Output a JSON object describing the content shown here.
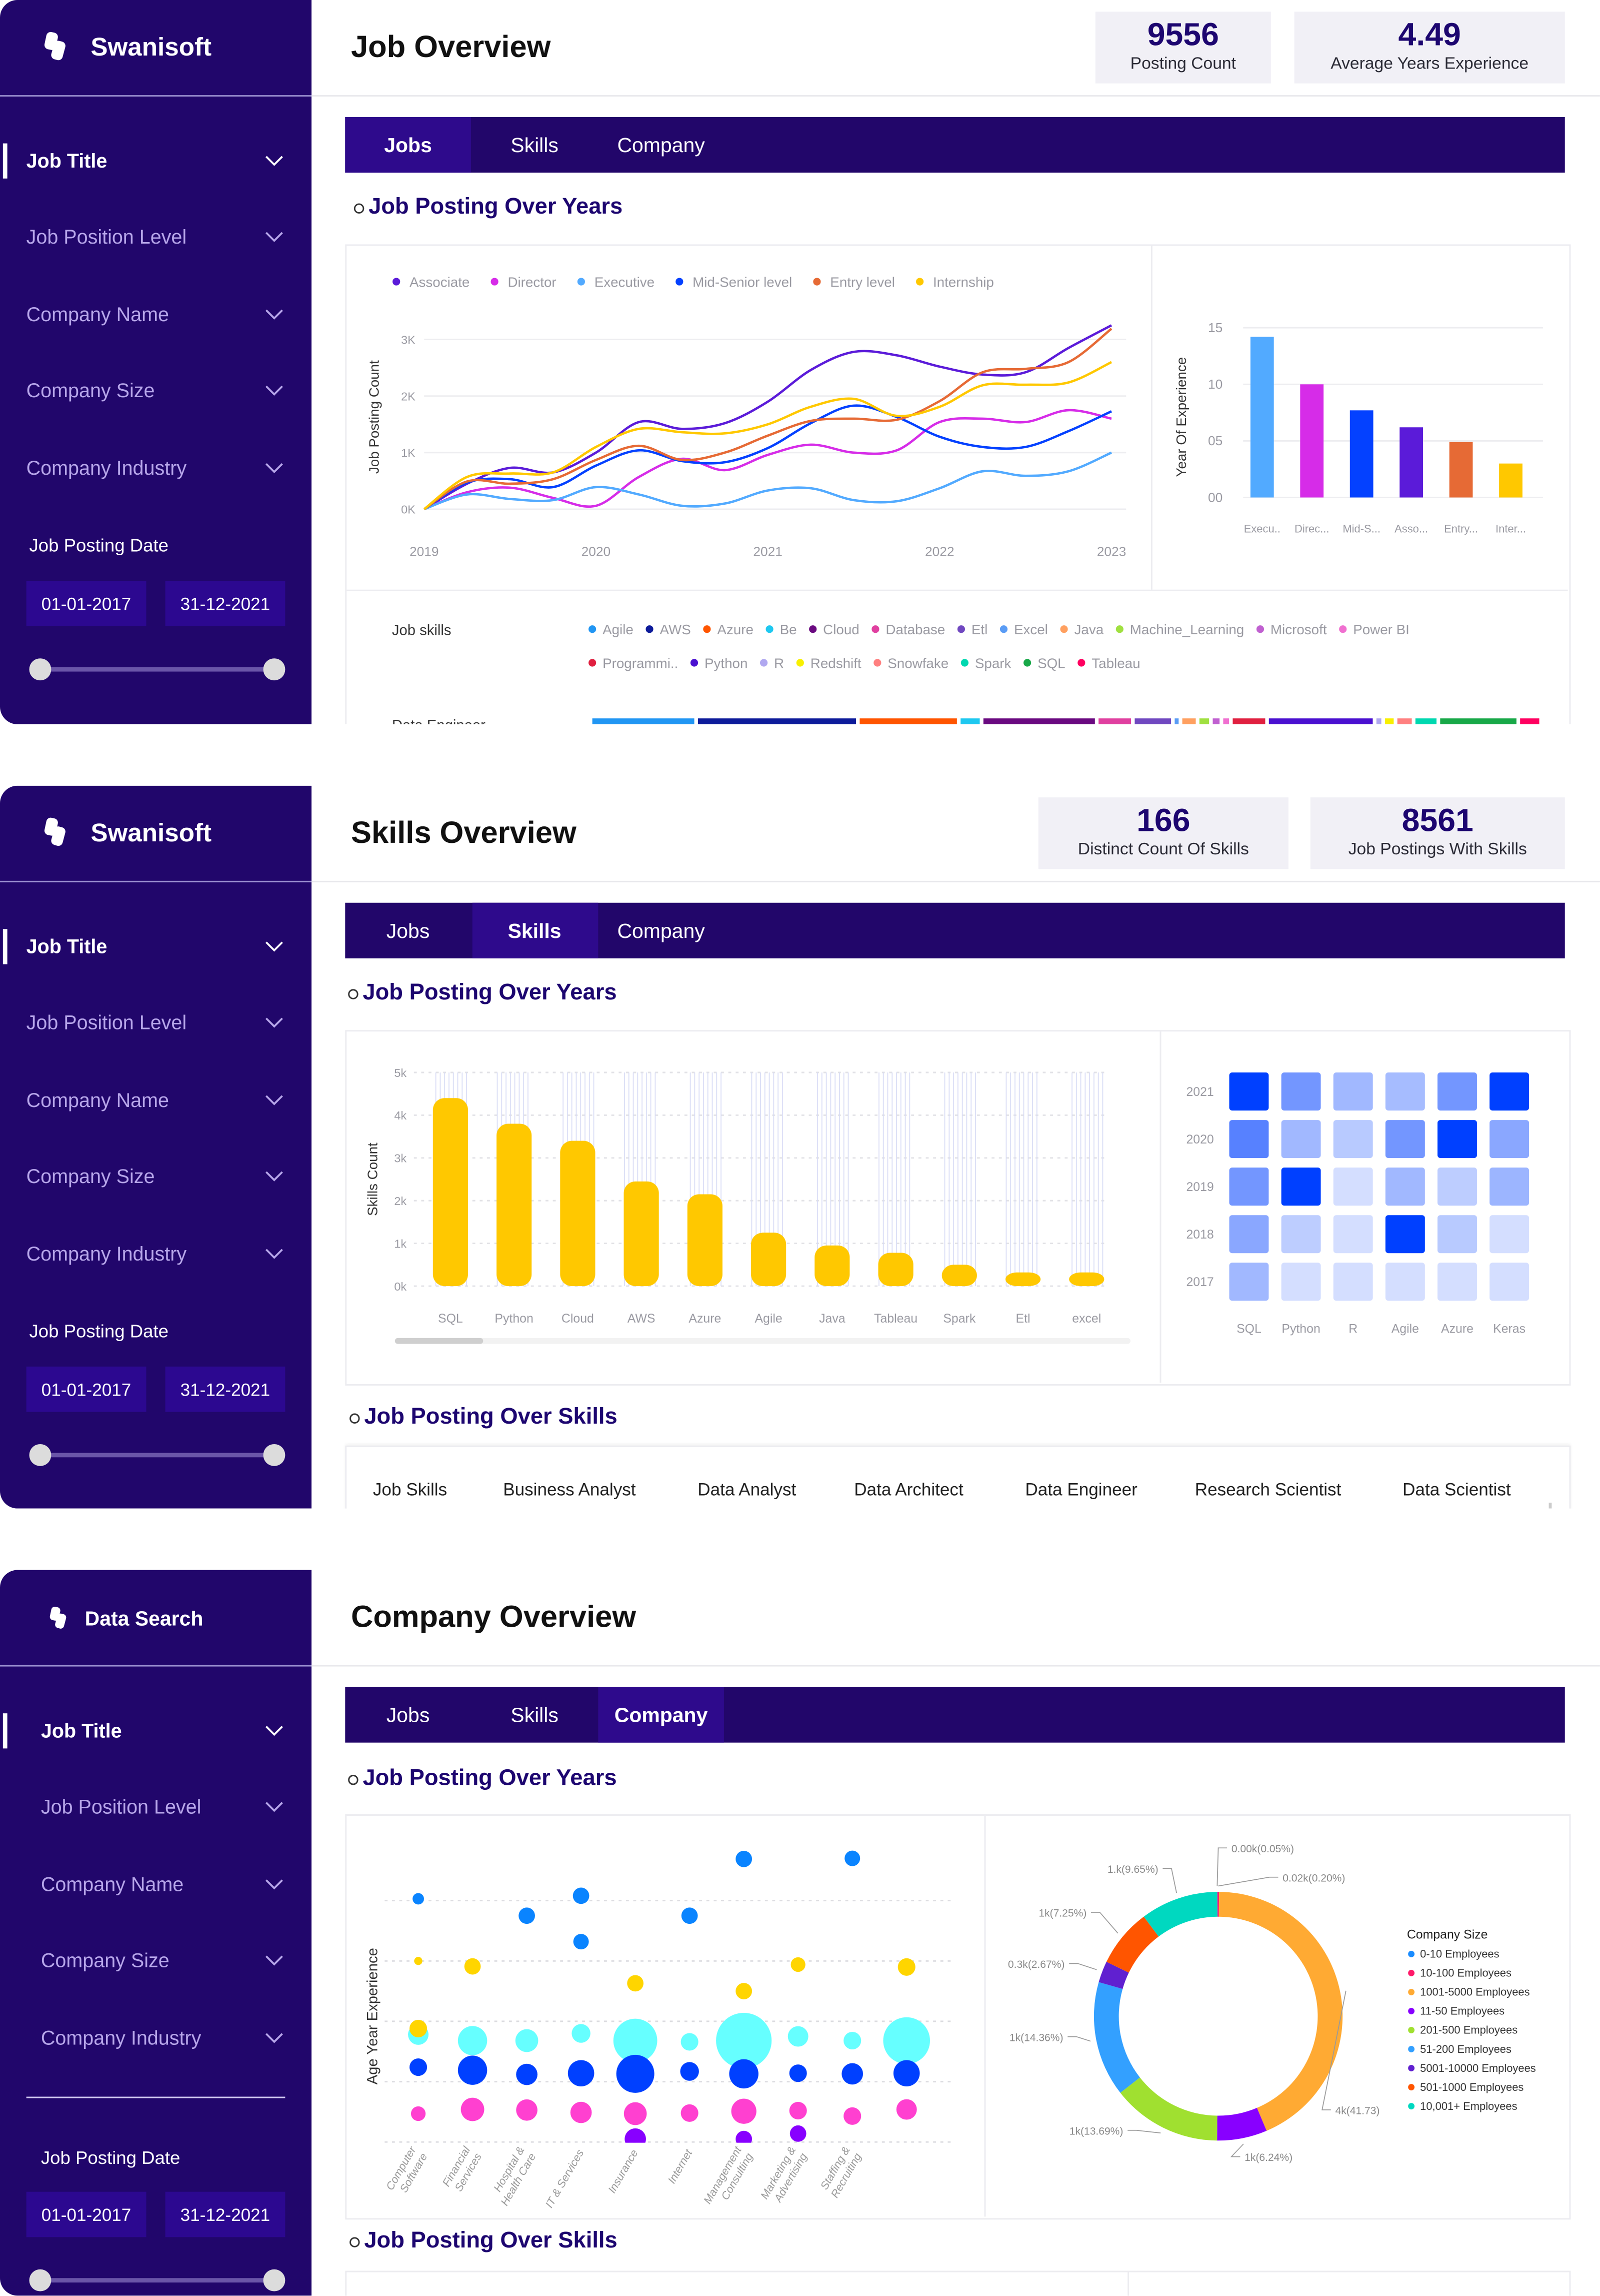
{
  "colors": {
    "sidebar_bg": "#21066b",
    "tab_bar_bg": "#22066a",
    "tab_active_bg": "#2e0a8c",
    "heading": "#1d0670",
    "kpi_bg": "#f1f0f6",
    "accent_yellow": "#ffc800"
  },
  "panels": [
    {
      "sidebar": {
        "brand": "Swanisoft",
        "filters": [
          "Job Title",
          "Job Position Level",
          "Company Name",
          "Company Size",
          "Company Industry"
        ],
        "active_filter": "Job Title",
        "date_label": "Job Posting Date",
        "date_from": "01-01-2017",
        "date_to": "31-12-2021",
        "slider": {
          "from_fraction": 0,
          "to_fraction": 1
        }
      },
      "title": "Job Overview",
      "kpis": [
        {
          "value": "9556",
          "label": "Posting Count"
        },
        {
          "value": "4.49",
          "label": "Average Years Experience"
        }
      ],
      "tabs": [
        "Jobs",
        "Skills",
        "Company"
      ],
      "active_tab": "Jobs",
      "sections": [
        "Job Posting Over Years"
      ]
    },
    {
      "sidebar": {
        "brand": "Swanisoft",
        "filters": [
          "Job Title",
          "Job Position Level",
          "Company Name",
          "Company Size",
          "Company Industry"
        ],
        "active_filter": "Job Title",
        "date_label": "Job Posting Date",
        "date_from": "01-01-2017",
        "date_to": "31-12-2021",
        "slider": {
          "from_fraction": 0,
          "to_fraction": 1
        }
      },
      "title": "Skills Overview",
      "kpis": [
        {
          "value": "166",
          "label": "Distinct Count Of Skills"
        },
        {
          "value": "8561",
          "label": "Job Postings With Skills"
        }
      ],
      "tabs": [
        "Jobs",
        "Skills",
        "Company"
      ],
      "active_tab": "Skills",
      "sections": [
        "Job Posting Over Years",
        "Job Posting Over Skills"
      ],
      "skills_table_headers": [
        "Job Skills",
        "Business Analyst",
        "Data Analyst",
        "Data Architect",
        "Data Engineer",
        "Research Scientist",
        "Data Scientist"
      ]
    },
    {
      "sidebar": {
        "brand": "Data Search",
        "filters": [
          "Job Title",
          "Job Position Level",
          "Company Name",
          "Company Size",
          "Company Industry"
        ],
        "active_filter": "Job Title",
        "date_label": "Job Posting Date",
        "date_from": "01-01-2017",
        "date_to": "31-12-2021",
        "slider": {
          "from_fraction": 0,
          "to_fraction": 1
        }
      },
      "title": "Company Overview",
      "tabs": [
        "Jobs",
        "Skills",
        "Company"
      ],
      "active_tab": "Company",
      "sections": [
        "Job Posting Over Years",
        "Job Posting Over Skills"
      ]
    }
  ],
  "chart_data": [
    {
      "type": "line",
      "ylabel": "Job Posting Count",
      "x": [
        2019,
        2019.25,
        2019.5,
        2019.75,
        2020,
        2020.25,
        2020.5,
        2020.75,
        2021,
        2021.25,
        2021.5,
        2021.75,
        2022,
        2022.25,
        2022.5,
        2022.75,
        2023
      ],
      "x_ticks": [
        "2019",
        "2020",
        "2021",
        "2022",
        "2023"
      ],
      "y_ticks": [
        "0K",
        "1K",
        "2K",
        "3K"
      ],
      "ylim": [
        0,
        3000
      ],
      "grid": true,
      "legend": "top-left",
      "series": [
        {
          "name": "Associate",
          "color": "#5b1bd9",
          "values": [
            0,
            450,
            730,
            650,
            1000,
            1540,
            1420,
            1520,
            1900,
            2460,
            2780,
            2720,
            2520,
            2380,
            2420,
            2850,
            3250
          ]
        },
        {
          "name": "Director",
          "color": "#d62ce8",
          "values": [
            0,
            300,
            380,
            200,
            60,
            570,
            890,
            690,
            960,
            1140,
            1000,
            1040,
            1540,
            1600,
            1540,
            1750,
            1600
          ]
        },
        {
          "name": "Executive",
          "color": "#52aaff",
          "values": [
            0,
            260,
            180,
            160,
            390,
            260,
            60,
            100,
            330,
            370,
            160,
            140,
            370,
            670,
            590,
            670,
            1000
          ]
        },
        {
          "name": "Mid-Senior level",
          "color": "#0441ff",
          "values": [
            0,
            470,
            530,
            390,
            770,
            1040,
            850,
            830,
            1080,
            1520,
            1830,
            1630,
            1280,
            1100,
            1100,
            1380,
            1730
          ]
        },
        {
          "name": "Entry level",
          "color": "#e66a35",
          "values": [
            0,
            490,
            450,
            530,
            870,
            1120,
            870,
            1000,
            1300,
            1560,
            1600,
            1580,
            1910,
            2420,
            2480,
            2600,
            3190
          ]
        },
        {
          "name": "Internship",
          "color": "#ffc800",
          "values": [
            0,
            570,
            630,
            650,
            1100,
            1420,
            1360,
            1340,
            1500,
            1810,
            1950,
            1650,
            1810,
            2190,
            2200,
            2240,
            2600
          ]
        }
      ]
    },
    {
      "type": "bar",
      "ylabel": "Year Of Experience",
      "categories": [
        "Execu..",
        "Direc...",
        "Mid-S...",
        "Asso...",
        "Entry...",
        "Inter..."
      ],
      "values": [
        14.2,
        10.0,
        7.7,
        6.2,
        4.9,
        3.0
      ],
      "colors": [
        "#52aaff",
        "#d62ce8",
        "#0441ff",
        "#5b1bd9",
        "#e66a35",
        "#ffc800"
      ],
      "y_ticks": [
        "00",
        "05",
        "10",
        "15"
      ],
      "ylim": [
        0,
        15
      ],
      "grid": true
    },
    {
      "type": "bar",
      "stacked": true,
      "legend_title": "Job skills",
      "row_label": "Data Engineer",
      "unit": "percent share",
      "series": [
        {
          "name": "Agile",
          "color": "#2196f3",
          "value": 11.1
        },
        {
          "name": "AWS",
          "color": "#0d1b9a",
          "value": 17.0
        },
        {
          "name": "Azure",
          "color": "#ff5500",
          "value": 10.6
        },
        {
          "name": "Be",
          "color": "#1ec8f0",
          "value": 2.4
        },
        {
          "name": "Cloud",
          "color": "#6a0a80",
          "value": 12.1
        },
        {
          "name": "Database",
          "color": "#e040a0",
          "value": 3.8
        },
        {
          "name": "Etl",
          "color": "#7048c0",
          "value": 4.2
        },
        {
          "name": "Excel",
          "color": "#5a9cf5",
          "value": 0.8
        },
        {
          "name": "Java",
          "color": "#ffa060",
          "value": 1.8
        },
        {
          "name": "Machine_Learning",
          "color": "#a0e040",
          "value": 1.4
        },
        {
          "name": "Microsoft",
          "color": "#c060d0",
          "value": 1.1
        },
        {
          "name": "Power BI",
          "color": "#f070d0",
          "value": 1.0
        },
        {
          "name": "Programmi..",
          "color": "#e02040",
          "value": 3.8
        },
        {
          "name": "Python",
          "color": "#4a10d0",
          "value": 11.3
        },
        {
          "name": "R",
          "color": "#b0a8f0",
          "value": 0.9
        },
        {
          "name": "Redshift",
          "color": "#f8f000",
          "value": 1.3
        },
        {
          "name": "Snowfake",
          "color": "#ff8080",
          "value": 1.9
        },
        {
          "name": "Spark",
          "color": "#00d8b0",
          "value": 2.6
        },
        {
          "name": "SQL",
          "color": "#18a848",
          "value": 8.4
        },
        {
          "name": "Tableau",
          "color": "#ff0060",
          "value": 2.4
        }
      ]
    },
    {
      "type": "bar",
      "ylabel": "Skills Count",
      "categories": [
        "SQL",
        "Python",
        "Cloud",
        "AWS",
        "Azure",
        "Agile",
        "Java",
        "Tableau",
        "Spark",
        "Etl",
        "excel"
      ],
      "values": [
        4400,
        3800,
        3400,
        2450,
        2150,
        1250,
        950,
        780,
        500,
        320,
        320
      ],
      "color": "#ffc800",
      "y_ticks": [
        "0k",
        "1k",
        "2k",
        "3k",
        "4k",
        "5k"
      ],
      "ylim": [
        0,
        5000
      ],
      "grid": true,
      "scrollbar_fraction": 0.12
    },
    {
      "type": "heatmap",
      "rows": [
        "2021",
        "2020",
        "2019",
        "2018",
        "2017"
      ],
      "columns": [
        "SQL",
        "Python",
        "R",
        "Agile",
        "Azure",
        "Keras"
      ],
      "values": [
        [
          1.0,
          0.5,
          0.3,
          0.28,
          0.5,
          1.0
        ],
        [
          0.62,
          0.3,
          0.2,
          0.5,
          1.0,
          0.4
        ],
        [
          0.5,
          1.0,
          0.08,
          0.3,
          0.18,
          0.32
        ],
        [
          0.4,
          0.18,
          0.08,
          1.0,
          0.2,
          0.08
        ],
        [
          0.3,
          0.08,
          0.08,
          0.08,
          0.08,
          0.08
        ]
      ],
      "color_low": "#e6ecff",
      "color_high": "#0040ff"
    },
    {
      "type": "scatter",
      "ylabel": "Age Year Experience",
      "categories": [
        "Computer Software",
        "Financial Services",
        "Hospital & Health Care",
        "IT & Services",
        "Insurance",
        "Internet",
        "Management Consulting",
        "Marketing & Advertising",
        "Staffing & Recruiting",
        ""
      ],
      "category_labels": [
        [
          "Computer",
          "Software"
        ],
        [
          "Financial",
          "Services"
        ],
        [
          "Hospital &",
          "Health Care"
        ],
        [
          "IT & Services"
        ],
        [
          "Insurance"
        ],
        [
          "Internet"
        ],
        [
          "Management",
          "Consulting"
        ],
        [
          "Marketing &",
          "Advertising"
        ],
        [
          "Staffing &",
          "Recruiting"
        ]
      ],
      "grid": true,
      "points": [
        {
          "c": 0,
          "y": 4.03,
          "size": 3.9,
          "color": "#0a84ff"
        },
        {
          "c": 0,
          "y": 3.0,
          "size": 2.8,
          "color": "#ffd500"
        },
        {
          "c": 0,
          "y": 1.78,
          "size": 7,
          "color": "#66ffff"
        },
        {
          "c": 0,
          "y": 1.88,
          "size": 6,
          "color": "#ffd500"
        },
        {
          "c": 0,
          "y": 1.24,
          "size": 6,
          "color": "#0040ff"
        },
        {
          "c": 0,
          "y": 0.47,
          "size": 5,
          "color": "#ff40d0"
        },
        {
          "c": 1,
          "y": 2.91,
          "size": 5.6,
          "color": "#ffd500"
        },
        {
          "c": 1,
          "y": 1.68,
          "size": 10,
          "color": "#66ffff"
        },
        {
          "c": 1,
          "y": 1.19,
          "size": 10,
          "color": "#0040ff"
        },
        {
          "c": 1,
          "y": 0.54,
          "size": 8,
          "color": "#ff40d0"
        },
        {
          "c": 2,
          "y": 3.75,
          "size": 5.6,
          "color": "#0a84ff"
        },
        {
          "c": 2,
          "y": 1.68,
          "size": 7.8,
          "color": "#66ffff"
        },
        {
          "c": 2,
          "y": 1.12,
          "size": 7.3,
          "color": "#0040ff"
        },
        {
          "c": 2,
          "y": 0.53,
          "size": 7.3,
          "color": "#ff40d0"
        },
        {
          "c": 3,
          "y": 4.08,
          "size": 5.6,
          "color": "#0a84ff"
        },
        {
          "c": 3,
          "y": 3.32,
          "size": 5.3,
          "color": "#0a84ff"
        },
        {
          "c": 3,
          "y": 1.8,
          "size": 6.4,
          "color": "#66ffff"
        },
        {
          "c": 3,
          "y": 1.14,
          "size": 9,
          "color": "#0040ff"
        },
        {
          "c": 3,
          "y": 0.49,
          "size": 7.3,
          "color": "#ff40d0"
        },
        {
          "c": 4,
          "y": 2.63,
          "size": 5.6,
          "color": "#ffd500"
        },
        {
          "c": 4,
          "y": 1.68,
          "size": 15,
          "color": "#66ffff"
        },
        {
          "c": 4,
          "y": 1.13,
          "size": 13,
          "color": "#0040ff"
        },
        {
          "c": 4,
          "y": 0.47,
          "size": 7.8,
          "color": "#ff40d0"
        },
        {
          "c": 4,
          "y": 0.05,
          "size": 7.3,
          "color": "#8800ff"
        },
        {
          "c": 5,
          "y": 3.75,
          "size": 5.6,
          "color": "#0a84ff"
        },
        {
          "c": 5,
          "y": 1.66,
          "size": 6,
          "color": "#66ffff"
        },
        {
          "c": 5,
          "y": 1.17,
          "size": 6.4,
          "color": "#0040ff"
        },
        {
          "c": 5,
          "y": 0.48,
          "size": 6,
          "color": "#ff40d0"
        },
        {
          "c": 6,
          "y": 4.69,
          "size": 5.6,
          "color": "#0a84ff"
        },
        {
          "c": 6,
          "y": 2.5,
          "size": 5.6,
          "color": "#ffd500"
        },
        {
          "c": 6,
          "y": 1.68,
          "size": 19,
          "color": "#66ffff"
        },
        {
          "c": 6,
          "y": 1.13,
          "size": 10,
          "color": "#0040ff"
        },
        {
          "c": 6,
          "y": 0.51,
          "size": 8.6,
          "color": "#ff40d0"
        },
        {
          "c": 6,
          "y": 0.05,
          "size": 5.6,
          "color": "#8800ff"
        },
        {
          "c": 7,
          "y": 2.94,
          "size": 5,
          "color": "#ffd500"
        },
        {
          "c": 7,
          "y": 1.75,
          "size": 7,
          "color": "#66ffff"
        },
        {
          "c": 7,
          "y": 1.14,
          "size": 6,
          "color": "#0040ff"
        },
        {
          "c": 7,
          "y": 0.52,
          "size": 6,
          "color": "#ff40d0"
        },
        {
          "c": 7,
          "y": 0.14,
          "size": 5.6,
          "color": "#8800ff"
        },
        {
          "c": 8,
          "y": 4.7,
          "size": 5.3,
          "color": "#0a84ff"
        },
        {
          "c": 8,
          "y": 1.68,
          "size": 6,
          "color": "#66ffff"
        },
        {
          "c": 8,
          "y": 1.13,
          "size": 7.3,
          "color": "#0040ff"
        },
        {
          "c": 8,
          "y": 0.43,
          "size": 6,
          "color": "#ff40d0"
        },
        {
          "c": 9,
          "y": 2.9,
          "size": 6,
          "color": "#ffd500"
        },
        {
          "c": 9,
          "y": 1.68,
          "size": 16,
          "color": "#66ffff"
        },
        {
          "c": 9,
          "y": 1.14,
          "size": 9,
          "color": "#0040ff"
        },
        {
          "c": 9,
          "y": 0.54,
          "size": 7,
          "color": "#ff40d0"
        }
      ]
    },
    {
      "type": "pie",
      "donut": true,
      "legend_title": "Company Size",
      "legend": "right",
      "slices": [
        {
          "name": "0-10 Employees",
          "color": "#1a8cff",
          "value": 0.05,
          "label": "0.00k(0.05%)"
        },
        {
          "name": "10-100 Employees",
          "color": "#ff1a6a",
          "value": 0.2,
          "label": "0.02k(0.20%)"
        },
        {
          "name": "1001-5000 Employees",
          "color": "#ffaa33",
          "value": 41.73,
          "label": "4k(41.73)"
        },
        {
          "name": "11-50 Employees",
          "color": "#8800ff",
          "value": 6.24,
          "label": "1k(6.24%)"
        },
        {
          "name": "201-500 Employees",
          "color": "#a0e030",
          "value": 13.69,
          "label": "1k(13.69%)"
        },
        {
          "name": "51-200 Employees",
          "color": "#33a0ff",
          "value": 14.36,
          "label": "1k(14.36%)"
        },
        {
          "name": "5001-10000 Employees",
          "color": "#6020d0",
          "value": 2.67,
          "label": "0.3k(2.67%)"
        },
        {
          "name": "501-1000 Employees",
          "color": "#ff5500",
          "value": 7.25,
          "label": "1k(7.25%)"
        },
        {
          "name": "10,001+ Employees",
          "color": "#00d8c0",
          "value": 9.65,
          "label": "1.k(9.65%)"
        }
      ]
    }
  ]
}
